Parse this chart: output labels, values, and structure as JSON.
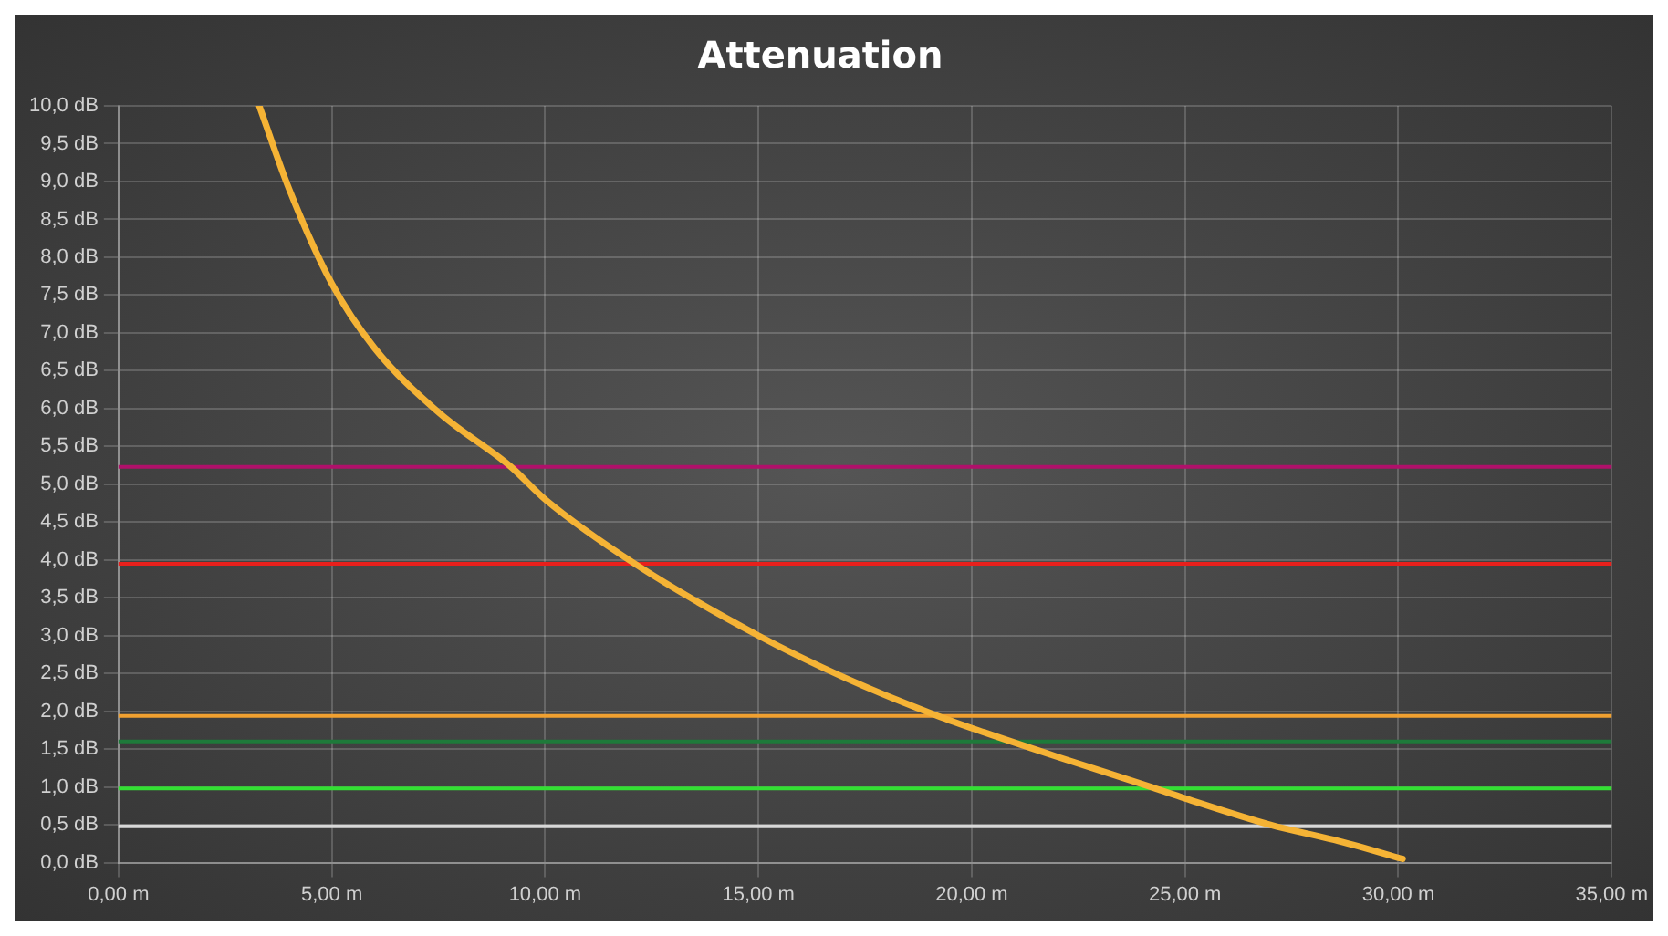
{
  "chart_data": {
    "type": "line",
    "title": "Attenuation",
    "x": [
      3.3,
      4,
      5,
      6,
      7.5,
      9.2,
      10,
      12.1,
      15,
      17,
      19.2,
      20.3,
      22,
      24.2,
      25,
      27,
      28.5,
      30.1
    ],
    "series": [
      {
        "color": "#f5b335",
        "values": [
          10,
          8.9,
          7.65,
          6.8,
          5.95,
          5.23,
          4.8,
          3.95,
          3.0,
          2.45,
          1.94,
          1.72,
          1.4,
          1.0,
          0.85,
          0.5,
          0.3,
          0.05
        ]
      }
    ],
    "xlim": [
      0,
      35
    ],
    "ylim": [
      0,
      10
    ],
    "xticks": [
      {
        "value": 0,
        "label": "0,00 m"
      },
      {
        "value": 5,
        "label": "5,00 m"
      },
      {
        "value": 10,
        "label": "10,00 m"
      },
      {
        "value": 15,
        "label": "15,00 m"
      },
      {
        "value": 20,
        "label": "20,00 m"
      },
      {
        "value": 25,
        "label": "25,00 m"
      },
      {
        "value": 30,
        "label": "30,00 m"
      },
      {
        "value": 35,
        "label": "35,00 m"
      }
    ],
    "yticks": [
      {
        "value": 0,
        "label": "0,0 dB"
      },
      {
        "value": 0.5,
        "label": "0,5 dB"
      },
      {
        "value": 1,
        "label": "1,0 dB"
      },
      {
        "value": 1.5,
        "label": "1,5 dB"
      },
      {
        "value": 2,
        "label": "2,0 dB"
      },
      {
        "value": 2.5,
        "label": "2,5 dB"
      },
      {
        "value": 3,
        "label": "3,0 dB"
      },
      {
        "value": 3.5,
        "label": "3,5 dB"
      },
      {
        "value": 4,
        "label": "4,0 dB"
      },
      {
        "value": 4.5,
        "label": "4,5 dB"
      },
      {
        "value": 5,
        "label": "5,0 dB"
      },
      {
        "value": 5.5,
        "label": "5,5 dB"
      },
      {
        "value": 6,
        "label": "6,0 dB"
      },
      {
        "value": 6.5,
        "label": "6,5 dB"
      },
      {
        "value": 7,
        "label": "7,0 dB"
      },
      {
        "value": 7.5,
        "label": "7,5 dB"
      },
      {
        "value": 8,
        "label": "8,0 dB"
      },
      {
        "value": 8.5,
        "label": "8,5 dB"
      },
      {
        "value": 9,
        "label": "9,0 dB"
      },
      {
        "value": 9.5,
        "label": "9,5 dB"
      },
      {
        "value": 10,
        "label": "10,0 dB"
      }
    ],
    "ref_lines": [
      {
        "axis": "y",
        "value": 5.23,
        "color": "#b0106a"
      },
      {
        "axis": "y",
        "value": 3.95,
        "color": "#e8201c"
      },
      {
        "axis": "y",
        "value": 1.94,
        "color": "#f0a030"
      },
      {
        "axis": "y",
        "value": 1.6,
        "color": "#1e7a3a"
      },
      {
        "axis": "y",
        "value": 0.98,
        "color": "#33e033"
      },
      {
        "axis": "y",
        "value": 0.48,
        "color": "#d8d8d8"
      }
    ],
    "grid": true,
    "marker": "none",
    "line_style": "solid",
    "legend": false
  }
}
